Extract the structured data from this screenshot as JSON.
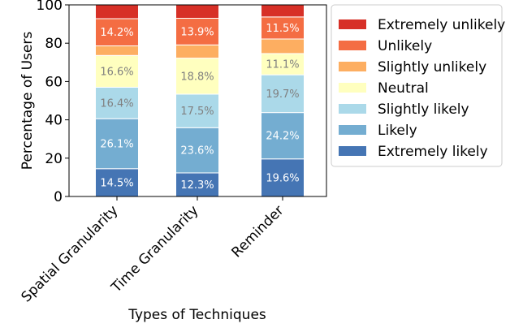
{
  "chart_data": {
    "type": "bar",
    "stacked": true,
    "xlabel": "Types of Techniques",
    "ylabel": "Percentage of Users",
    "ylim": [
      0,
      100
    ],
    "yticks": [
      0,
      20,
      40,
      60,
      80,
      100
    ],
    "grid": false,
    "legend_position": "outside-right-top",
    "categories": [
      "Spatial Granularity",
      "Time Granularity",
      "Reminder"
    ],
    "series": [
      {
        "name": "Extremely likely",
        "values": [
          14.5,
          12.3,
          19.6
        ],
        "color": "#4575b4"
      },
      {
        "name": "Likely",
        "values": [
          26.1,
          23.6,
          24.2
        ],
        "color": "#74add1"
      },
      {
        "name": "Slightly likely",
        "values": [
          16.4,
          17.5,
          19.7
        ],
        "color": "#abd9e9"
      },
      {
        "name": "Neutral",
        "values": [
          16.6,
          18.8,
          11.1
        ],
        "color": "#ffffbf"
      },
      {
        "name": "Slightly unlikely",
        "values": [
          5.0,
          6.9,
          7.6
        ],
        "color": "#fdae61"
      },
      {
        "name": "Unlikely",
        "values": [
          14.2,
          13.9,
          11.5
        ],
        "color": "#f46d43"
      },
      {
        "name": "Extremely unlikely",
        "values": [
          7.2,
          7.0,
          6.3
        ],
        "color": "#d73027"
      }
    ],
    "data_labels": [
      [
        "14.5%",
        "12.3%",
        "19.6%"
      ],
      [
        "26.1%",
        "23.6%",
        "24.2%"
      ],
      [
        "16.4%",
        "17.5%",
        "19.7%"
      ],
      [
        "16.6%",
        "18.8%",
        "11.1%"
      ],
      [
        "",
        "",
        ""
      ],
      [
        "14.2%",
        "13.9%",
        "11.5%"
      ],
      [
        "",
        "",
        ""
      ]
    ],
    "label_colors": [
      "#ffffff",
      "#ffffff",
      "#808080",
      "#808080",
      "#808080",
      "#ffffff",
      "#ffffff"
    ],
    "legend_order": [
      6,
      5,
      4,
      3,
      2,
      1,
      0
    ]
  }
}
